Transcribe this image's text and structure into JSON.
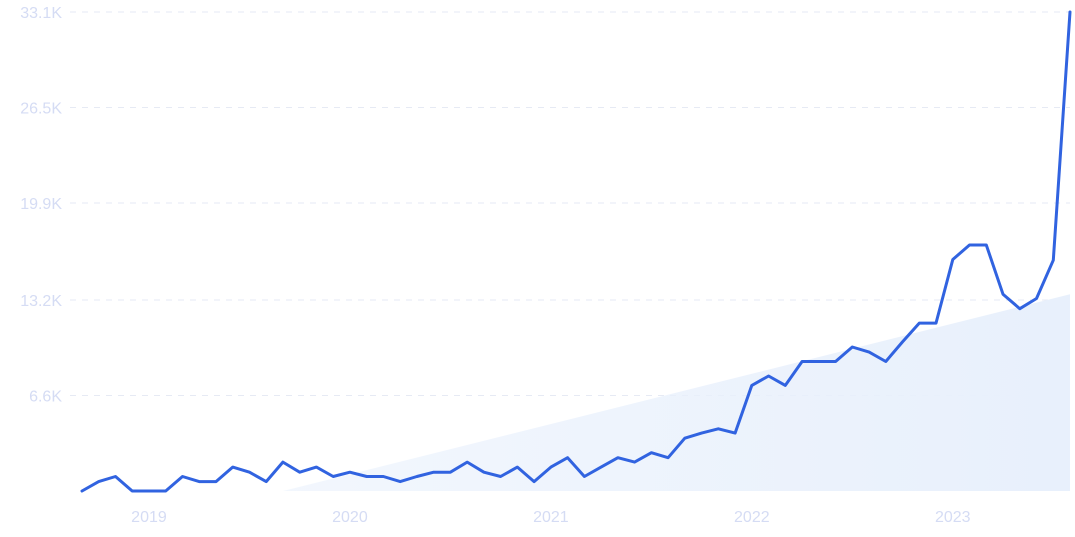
{
  "colors": {
    "line": "#3163E0",
    "tick_text": "#D5DCF4",
    "grid": "#E6EAF4",
    "trend_fill": "#E8F0FC",
    "background": "#FFFFFF"
  },
  "chart_data": {
    "type": "line",
    "title": "",
    "xlabel": "",
    "ylabel": "",
    "grid": true,
    "y_ticks": [
      {
        "value": 33100,
        "label": "33.1K"
      },
      {
        "value": 26500,
        "label": "26.5K"
      },
      {
        "value": 19900,
        "label": "19.9K"
      },
      {
        "value": 13200,
        "label": "13.2K"
      },
      {
        "value": 6600,
        "label": "6.6K"
      }
    ],
    "x_ticks": [
      {
        "value": "2019-01",
        "label": "2019"
      },
      {
        "value": "2020-01",
        "label": "2020"
      },
      {
        "value": "2021-01",
        "label": "2021"
      },
      {
        "value": "2022-01",
        "label": "2022"
      },
      {
        "value": "2023-01",
        "label": "2023"
      }
    ],
    "ylim": [
      0,
      33100
    ],
    "xlim": [
      "2018-09",
      "2023-08"
    ],
    "trend_area": {
      "start": "2019-09",
      "end": "2023-08",
      "start_value": 0,
      "end_value": 13600
    },
    "series": [
      {
        "x": [
          "2018-09",
          "2018-10",
          "2018-11",
          "2018-12",
          "2019-01",
          "2019-02",
          "2019-03",
          "2019-04",
          "2019-05",
          "2019-06",
          "2019-07",
          "2019-08",
          "2019-09",
          "2019-10",
          "2019-11",
          "2019-12",
          "2020-01",
          "2020-02",
          "2020-03",
          "2020-04",
          "2020-05",
          "2020-06",
          "2020-07",
          "2020-08",
          "2020-09",
          "2020-10",
          "2020-11",
          "2020-12",
          "2021-01",
          "2021-02",
          "2021-03",
          "2021-04",
          "2021-05",
          "2021-06",
          "2021-07",
          "2021-08",
          "2021-09",
          "2021-10",
          "2021-11",
          "2021-12",
          "2022-01",
          "2022-02",
          "2022-03",
          "2022-04",
          "2022-05",
          "2022-06",
          "2022-07",
          "2022-08",
          "2022-09",
          "2022-10",
          "2022-11",
          "2022-12",
          "2023-01",
          "2023-02",
          "2023-03",
          "2023-04",
          "2023-05",
          "2023-06",
          "2023-07",
          "2023-08"
        ],
        "values": [
          0,
          650,
          1000,
          0,
          0,
          0,
          1000,
          650,
          650,
          1650,
          1300,
          650,
          2000,
          1300,
          1650,
          1000,
          1300,
          1000,
          1000,
          650,
          1000,
          1300,
          1300,
          2000,
          1300,
          1000,
          1650,
          650,
          1650,
          2300,
          1000,
          1650,
          2300,
          2000,
          2650,
          2300,
          3650,
          4000,
          4300,
          4000,
          7300,
          7950,
          7300,
          8950,
          8950,
          8950,
          9950,
          9600,
          8950,
          10300,
          11600,
          11600,
          16000,
          17000,
          17000,
          13600,
          12600,
          13300,
          15950,
          33100
        ]
      }
    ]
  }
}
